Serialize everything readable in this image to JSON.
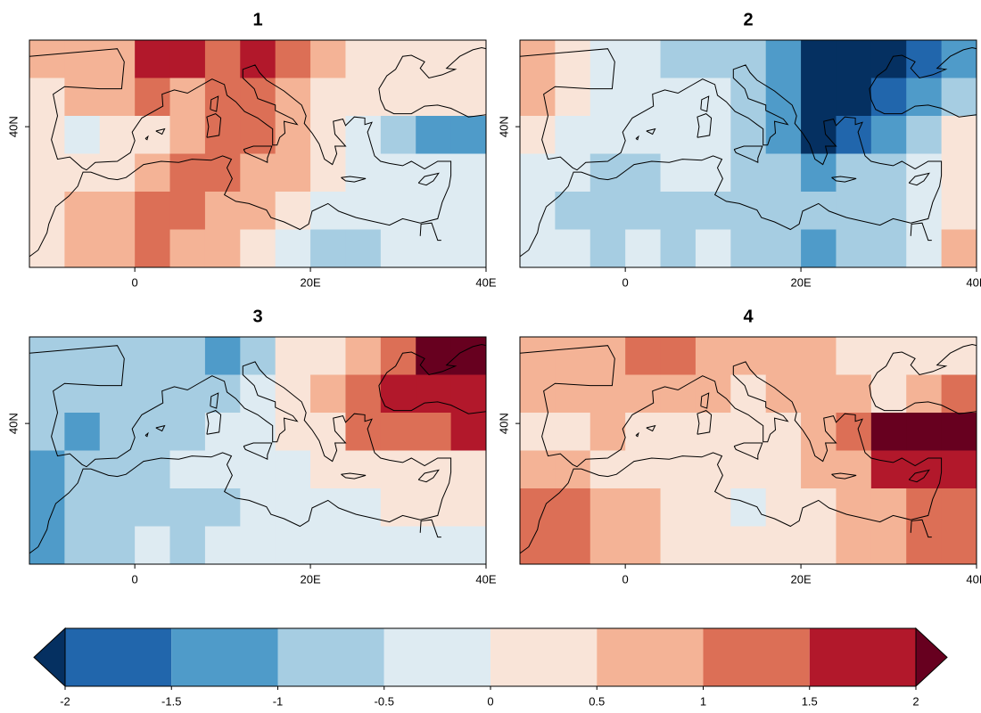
{
  "axes": {
    "xlim": [
      -12,
      40
    ],
    "ylim": [
      27,
      48
    ],
    "xticks": [
      0,
      {
        "value": 20,
        "label": "20E"
      },
      {
        "value": 40,
        "label": "40E"
      }
    ],
    "yticks": [
      {
        "value": 40,
        "label": "40N"
      }
    ]
  },
  "panels": [
    {
      "title": "1",
      "grid": [
        [
          0.7,
          0.8,
          0.8,
          1.6,
          1.7,
          1.2,
          1.6,
          1.3,
          0.6,
          0.3,
          0.2,
          0.2,
          0.3
        ],
        [
          0.3,
          0.6,
          0.8,
          1.1,
          0.8,
          1.2,
          1.2,
          0.8,
          0.3,
          0.1,
          0.2,
          0.1,
          0.2
        ],
        [
          0.3,
          -0.3,
          0.2,
          0.3,
          0.7,
          1.1,
          1.2,
          0.6,
          0.2,
          -0.3,
          -0.7,
          -1.1,
          -1.2
        ],
        [
          0.4,
          0.2,
          0.3,
          0.8,
          1.2,
          1.2,
          0.8,
          0.5,
          0.2,
          -0.2,
          -0.3,
          -0.4,
          -0.3
        ],
        [
          0.3,
          0.6,
          0.8,
          1.1,
          1.2,
          0.9,
          0.6,
          0.2,
          -0.3,
          -0.2,
          -0.2,
          -0.3,
          -0.2
        ],
        [
          0.3,
          0.5,
          0.7,
          1.1,
          0.9,
          0.6,
          0.4,
          -0.3,
          -0.6,
          -0.7,
          -0.3,
          -0.2,
          -0.3
        ]
      ]
    },
    {
      "title": "2",
      "grid": [
        [
          0.6,
          0.3,
          -0.3,
          -0.4,
          -0.6,
          -0.8,
          -0.7,
          -1.3,
          -2.1,
          -2.2,
          -2.1,
          -1.8,
          -1.5
        ],
        [
          0.6,
          0.2,
          -0.2,
          -0.2,
          -0.3,
          -0.3,
          -0.6,
          -1.5,
          -2.2,
          -2.1,
          -1.7,
          -1.2,
          -0.8
        ],
        [
          0.3,
          -0.2,
          -0.3,
          -0.3,
          -0.2,
          -0.3,
          -0.6,
          -1.2,
          -2.1,
          -1.6,
          -1.1,
          -0.6,
          0.3
        ],
        [
          -0.2,
          -0.3,
          -0.6,
          -0.7,
          -0.3,
          -0.3,
          -0.6,
          -0.7,
          -1.2,
          -0.8,
          -0.6,
          -0.3,
          0.2
        ],
        [
          -0.2,
          -0.6,
          -0.7,
          -0.6,
          -0.8,
          -0.7,
          -0.6,
          -0.8,
          -0.8,
          -0.8,
          -0.6,
          -0.3,
          0.4
        ],
        [
          -0.2,
          -0.4,
          -0.6,
          -0.4,
          -0.7,
          -0.4,
          -0.7,
          -0.9,
          -1.2,
          -0.8,
          -0.7,
          -0.3,
          0.6
        ]
      ]
    },
    {
      "title": "3",
      "grid": [
        [
          -0.6,
          -0.6,
          -0.8,
          -0.6,
          -0.7,
          -1.1,
          -0.7,
          0.2,
          0.3,
          0.7,
          1.3,
          2.1,
          2.2
        ],
        [
          -0.7,
          -0.8,
          -0.6,
          -0.7,
          -0.6,
          -0.7,
          -0.3,
          0.2,
          0.6,
          1.1,
          1.6,
          1.6,
          1.7
        ],
        [
          -0.8,
          -1.1,
          -0.6,
          -0.7,
          -0.6,
          -0.3,
          -0.2,
          0.2,
          0.4,
          1.2,
          1.1,
          1.3,
          1.7
        ],
        [
          -1.1,
          -0.7,
          -0.7,
          -0.6,
          -0.4,
          -0.3,
          -0.2,
          -0.3,
          0.2,
          0.3,
          0.3,
          0.2,
          0.2
        ],
        [
          -1.2,
          -0.9,
          -0.7,
          -0.7,
          -0.6,
          -0.6,
          -0.4,
          -0.3,
          -0.2,
          -0.2,
          0.2,
          0.1,
          0.3
        ],
        [
          -1.1,
          -0.7,
          -0.6,
          -0.4,
          -0.6,
          -0.4,
          -0.3,
          -0.2,
          -0.3,
          -0.2,
          -0.3,
          -0.1,
          -0.2
        ]
      ]
    },
    {
      "title": "4",
      "grid": [
        [
          0.7,
          0.6,
          0.8,
          1.1,
          1.1,
          0.8,
          0.9,
          0.8,
          0.6,
          0.3,
          0.3,
          0.2,
          0.3
        ],
        [
          0.6,
          0.7,
          0.6,
          0.8,
          0.7,
          0.6,
          0.3,
          0.6,
          0.8,
          0.6,
          0.3,
          0.7,
          1.2
        ],
        [
          0.3,
          0.3,
          0.6,
          0.3,
          0.3,
          0.3,
          0.3,
          0.3,
          0.8,
          1.1,
          2.2,
          2.1,
          2.2
        ],
        [
          0.7,
          0.8,
          0.3,
          0.3,
          0.2,
          0.2,
          0.2,
          0.2,
          0.6,
          0.8,
          1.6,
          1.8,
          1.6
        ],
        [
          1.1,
          1.2,
          0.8,
          0.7,
          0.4,
          0.3,
          -0.3,
          0.2,
          0.4,
          0.7,
          0.8,
          1.1,
          1.2
        ],
        [
          1.1,
          1.0,
          0.7,
          0.6,
          0.3,
          0.2,
          0.3,
          0.2,
          0.3,
          0.6,
          0.8,
          1.1,
          1.2
        ]
      ]
    }
  ],
  "colorbar": {
    "levels": [
      -2,
      -1.5,
      -1,
      -0.5,
      0,
      0.5,
      1,
      1.5,
      2
    ],
    "colors": [
      "#053061",
      "#2166ac",
      "#4f9bc9",
      "#a6cde2",
      "#deebf2",
      "#f9e4d8",
      "#f4b396",
      "#dc6f56",
      "#b2182b",
      "#67001f"
    ]
  }
}
